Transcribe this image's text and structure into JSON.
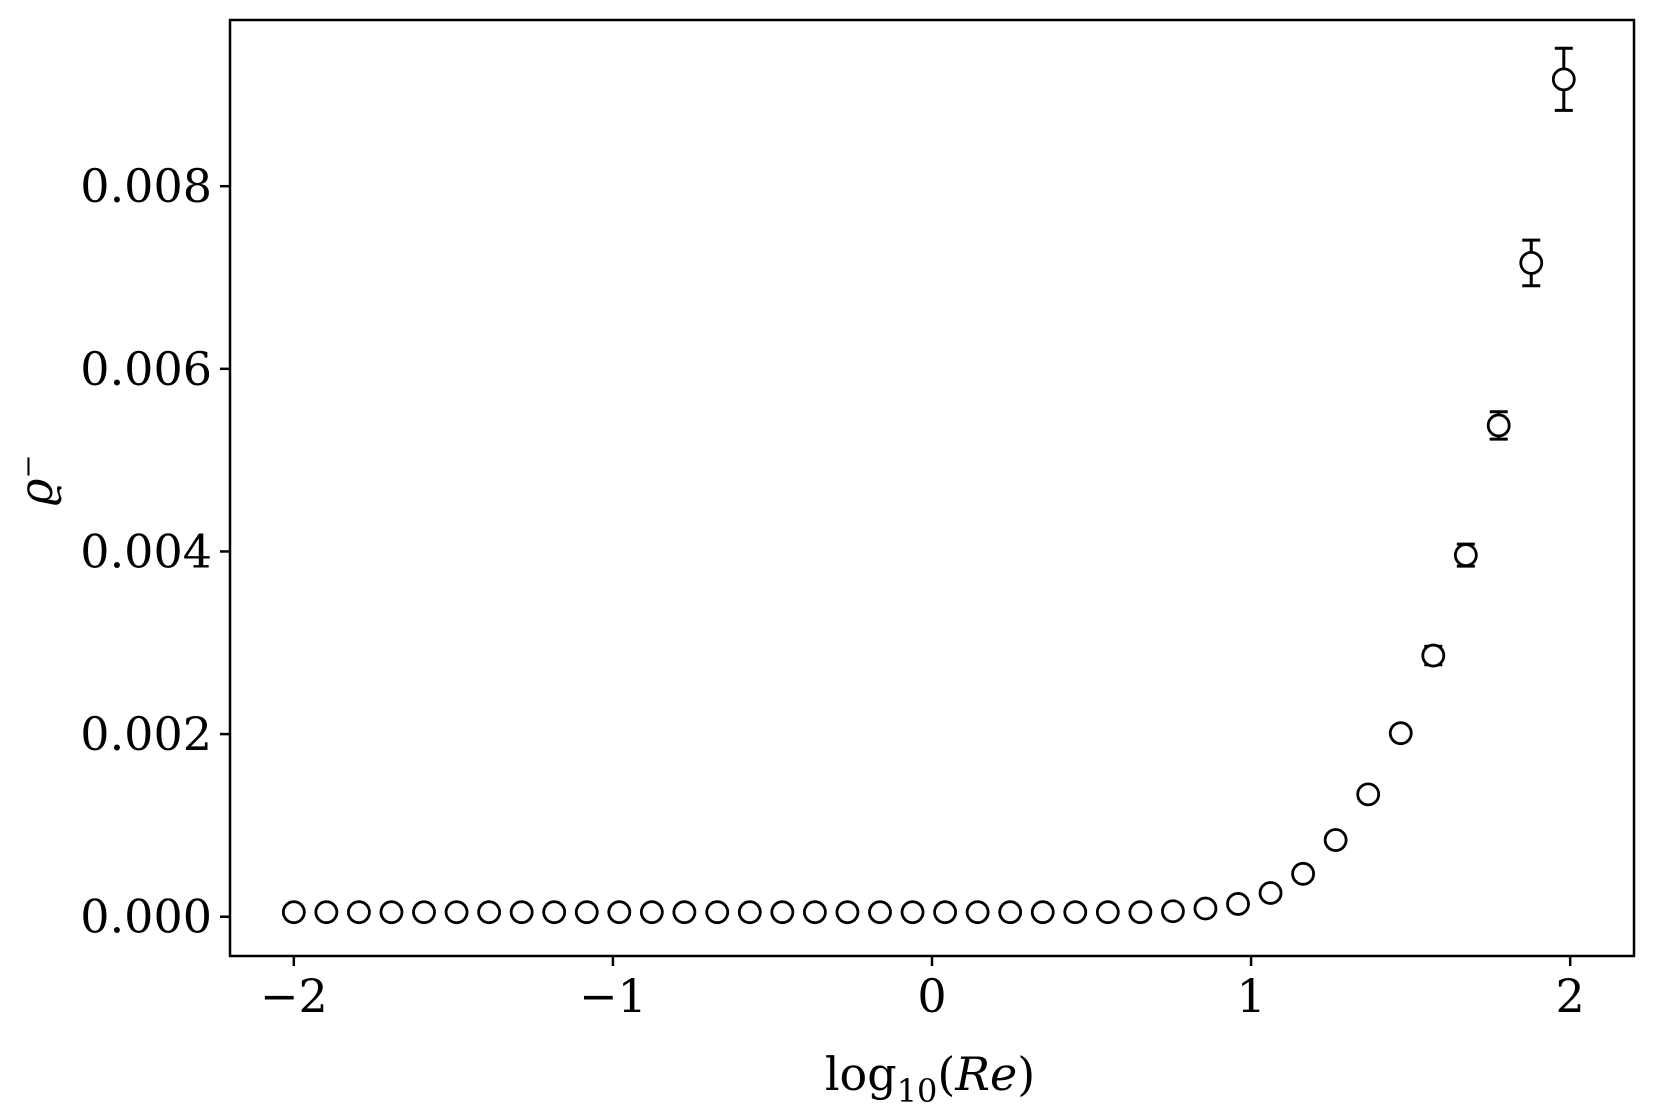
{
  "chart_data": {
    "type": "scatter",
    "xlabel": "log10(Re)",
    "ylabel": "ϱ⁻",
    "xlim": [
      -2.2,
      2.2
    ],
    "ylim": [
      -0.00043,
      0.00982
    ],
    "x_ticks": [
      -2,
      -1,
      0,
      1,
      2
    ],
    "x_tick_labels": [
      "−2",
      "−1",
      "0",
      "1",
      "2"
    ],
    "y_ticks": [
      0.0,
      0.002,
      0.004,
      0.006,
      0.008
    ],
    "y_tick_labels": [
      "0.000",
      "0.002",
      "0.004",
      "0.006",
      "0.008"
    ],
    "marker": "open-circle",
    "grid": false,
    "series": [
      {
        "x": [
          -2.0,
          -1.898,
          -1.796,
          -1.694,
          -1.592,
          -1.49,
          -1.388,
          -1.286,
          -1.184,
          -1.082,
          -0.98,
          -0.878,
          -0.776,
          -0.673,
          -0.571,
          -0.469,
          -0.367,
          -0.265,
          -0.163,
          -0.061,
          0.041,
          0.143,
          0.245,
          0.347,
          0.449,
          0.551,
          0.653,
          0.755,
          0.857,
          0.959,
          1.061,
          1.163,
          1.265,
          1.367,
          1.469,
          1.571,
          1.673,
          1.776,
          1.878,
          1.98
        ],
        "y": [
          5e-05,
          5e-05,
          5e-05,
          5e-05,
          5e-05,
          5e-05,
          5e-05,
          5e-05,
          5e-05,
          5e-05,
          5e-05,
          5e-05,
          5e-05,
          5e-05,
          5e-05,
          5e-05,
          5e-05,
          5e-05,
          5e-05,
          5e-05,
          5e-05,
          5e-05,
          5e-05,
          5e-05,
          5e-05,
          5e-05,
          5e-05,
          6e-05,
          9e-05,
          0.00014,
          0.00026,
          0.00047,
          0.00084,
          0.00134,
          0.00201,
          0.00286,
          0.00396,
          0.00538,
          0.00716,
          0.00917
        ],
        "yerr": [
          0,
          0,
          0,
          0,
          0,
          0,
          0,
          0,
          0,
          0,
          0,
          0,
          0,
          0,
          0,
          0,
          0,
          0,
          0,
          0,
          0,
          0,
          0,
          0,
          0,
          0,
          0,
          0,
          0,
          0,
          0,
          0,
          0,
          0,
          0,
          0.0001,
          0.00012,
          0.00015,
          0.00025,
          0.00034
        ]
      }
    ]
  }
}
